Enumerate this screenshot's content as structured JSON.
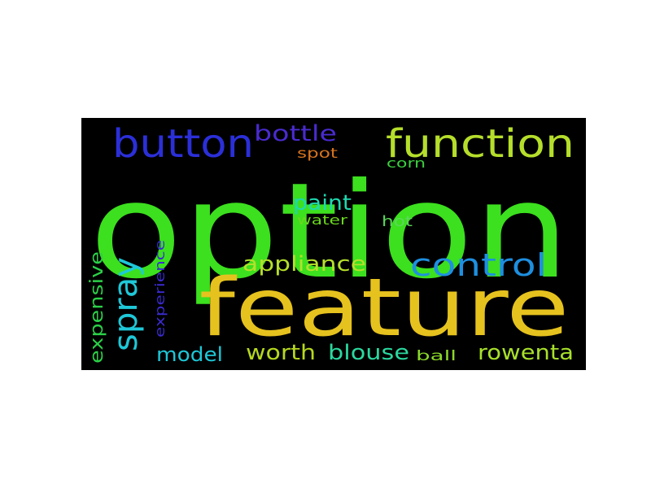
{
  "word_cloud": {
    "background_color": "#000000",
    "words": [
      {
        "text": "option",
        "color": "#3ce01e"
      },
      {
        "text": "feature",
        "color": "#e6c21e"
      },
      {
        "text": "function",
        "color": "#b5de2b"
      },
      {
        "text": "button",
        "color": "#2b2fd8"
      },
      {
        "text": "control",
        "color": "#1e8fe0"
      },
      {
        "text": "bottle",
        "color": "#4a2bd0"
      },
      {
        "text": "spray",
        "color": "#1ec8d8"
      },
      {
        "text": "appliance",
        "color": "#b5e02b"
      },
      {
        "text": "paint",
        "color": "#1ed8b0"
      },
      {
        "text": "spot",
        "color": "#d8741e"
      },
      {
        "text": "corn",
        "color": "#3cd040"
      },
      {
        "text": "water",
        "color": "#6ad81e"
      },
      {
        "text": "hot",
        "color": "#5ad85a"
      },
      {
        "text": "expensive",
        "color": "#2bd048"
      },
      {
        "text": "experience",
        "color": "#3a2bd0"
      },
      {
        "text": "model",
        "color": "#1ec8d8"
      },
      {
        "text": "worth",
        "color": "#b5d81e"
      },
      {
        "text": "blouse",
        "color": "#2bd8a0"
      },
      {
        "text": "ball",
        "color": "#8ad82b"
      },
      {
        "text": "rowenta",
        "color": "#a8e02b"
      }
    ]
  }
}
